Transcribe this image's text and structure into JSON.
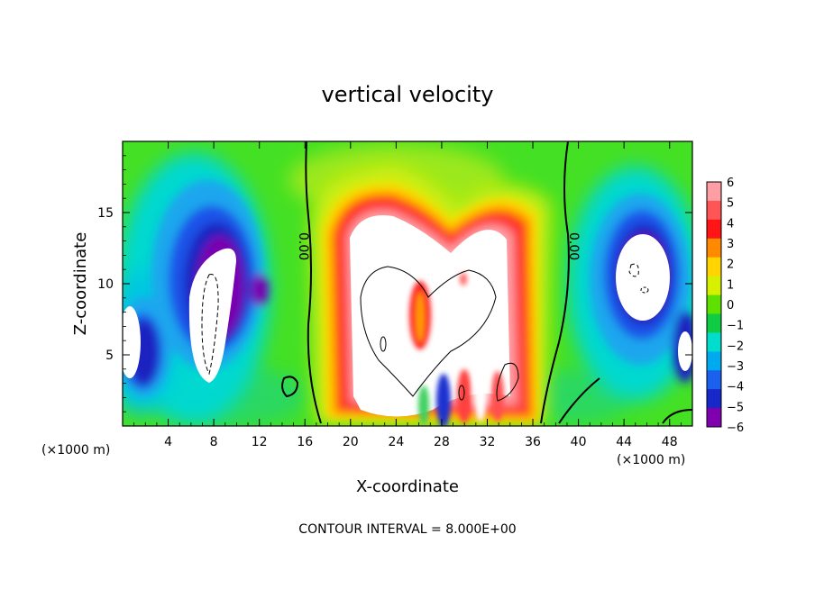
{
  "chart_data": {
    "type": "heatmap",
    "title": "vertical velocity",
    "xlabel": "X-coordinate",
    "ylabel": "Z-coordinate",
    "x_unit": "(×1000 m)",
    "x_unit_right": "(×1000 m)",
    "footer": "CONTOUR INTERVAL = 8.000E+00",
    "xlim": [
      0,
      50
    ],
    "ylim": [
      0,
      20
    ],
    "xticks": [
      "4",
      "8",
      "12",
      "16",
      "20",
      "24",
      "28",
      "32",
      "36",
      "40",
      "44",
      "48"
    ],
    "yticks": [
      "5",
      "10",
      "15"
    ],
    "colorbar": {
      "labels": [
        "6",
        "5",
        "4",
        "3",
        "2",
        "1",
        "0",
        "−1",
        "−2",
        "−3",
        "−4",
        "−5",
        "−6"
      ],
      "colors": [
        "#ff9ea5",
        "#ff5555",
        "#ff1515",
        "#ff8a00",
        "#ffd400",
        "#d6f000",
        "#5ee000",
        "#10cc44",
        "#00ddcc",
        "#00aaee",
        "#1c60ee",
        "#1828c8",
        "#8000b0"
      ],
      "range": [
        -6,
        6
      ]
    },
    "zero_contour_labels": [
      "0.00",
      "0.00"
    ],
    "background_color": "#40e020"
  }
}
